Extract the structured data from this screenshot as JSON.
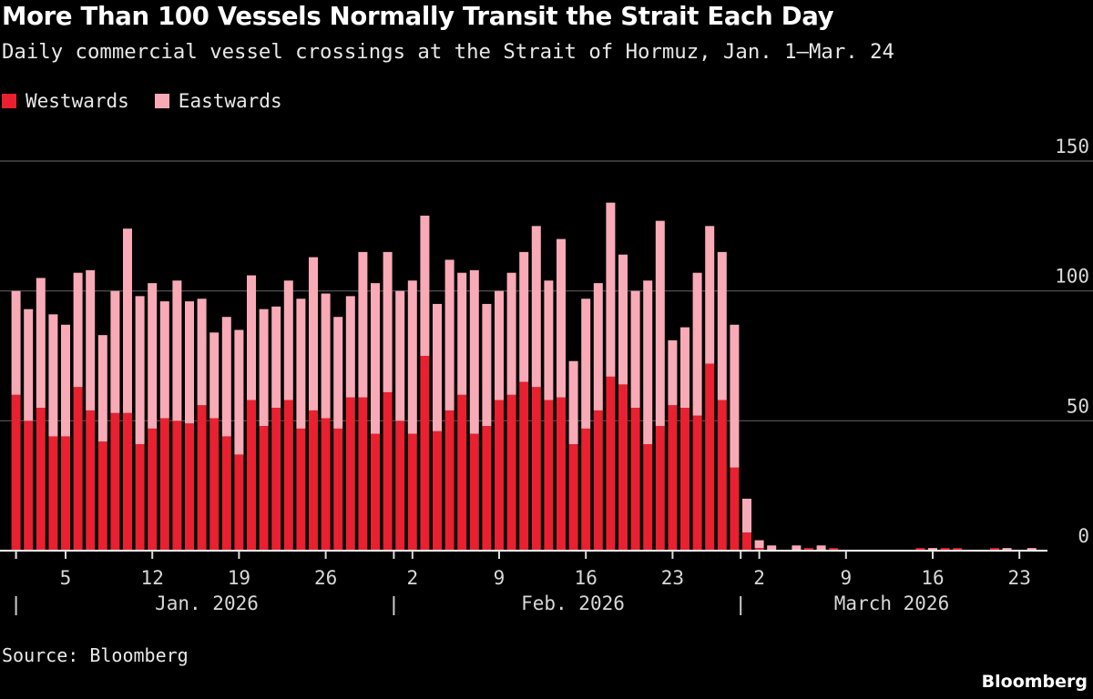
{
  "title": "More Than 100 Vessels Normally Transit the Strait Each Day",
  "subtitle": "Daily commercial vessel crossings at the Strait of Hormuz, Jan. 1–Mar. 24",
  "source": "Source: Bloomberg",
  "brand": "Bloomberg",
  "chart_data": {
    "type": "bar",
    "stacked": true,
    "legend_position": "top-left",
    "grid": true,
    "ylim": [
      0,
      150
    ],
    "yticks": [
      "0",
      "50",
      "100",
      "150"
    ],
    "xticks": [
      {
        "date": "2026-01-05",
        "label": "5"
      },
      {
        "date": "2026-01-12",
        "label": "12"
      },
      {
        "date": "2026-01-19",
        "label": "19"
      },
      {
        "date": "2026-01-26",
        "label": "26"
      },
      {
        "date": "2026-02-02",
        "label": "2"
      },
      {
        "date": "2026-02-09",
        "label": "9"
      },
      {
        "date": "2026-02-16",
        "label": "16"
      },
      {
        "date": "2026-02-23",
        "label": "23"
      },
      {
        "date": "2026-03-02",
        "label": "2"
      },
      {
        "date": "2026-03-09",
        "label": "9"
      },
      {
        "date": "2026-03-16",
        "label": "16"
      },
      {
        "date": "2026-03-23",
        "label": "23"
      }
    ],
    "month_labels": [
      "Jan. 2026",
      "Feb. 2026",
      "March 2026"
    ],
    "dates": [
      "2026-01-01",
      "2026-01-02",
      "2026-01-03",
      "2026-01-04",
      "2026-01-05",
      "2026-01-06",
      "2026-01-07",
      "2026-01-08",
      "2026-01-09",
      "2026-01-10",
      "2026-01-11",
      "2026-01-12",
      "2026-01-13",
      "2026-01-14",
      "2026-01-15",
      "2026-01-16",
      "2026-01-17",
      "2026-01-18",
      "2026-01-19",
      "2026-01-20",
      "2026-01-21",
      "2026-01-22",
      "2026-01-23",
      "2026-01-24",
      "2026-01-25",
      "2026-01-26",
      "2026-01-27",
      "2026-01-28",
      "2026-01-29",
      "2026-01-30",
      "2026-01-31",
      "2026-02-01",
      "2026-02-02",
      "2026-02-03",
      "2026-02-04",
      "2026-02-05",
      "2026-02-06",
      "2026-02-07",
      "2026-02-08",
      "2026-02-09",
      "2026-02-10",
      "2026-02-11",
      "2026-02-12",
      "2026-02-13",
      "2026-02-14",
      "2026-02-15",
      "2026-02-16",
      "2026-02-17",
      "2026-02-18",
      "2026-02-19",
      "2026-02-20",
      "2026-02-21",
      "2026-02-22",
      "2026-02-23",
      "2026-02-24",
      "2026-02-25",
      "2026-02-26",
      "2026-02-27",
      "2026-02-28",
      "2026-03-01",
      "2026-03-02",
      "2026-03-03",
      "2026-03-04",
      "2026-03-05",
      "2026-03-06",
      "2026-03-07",
      "2026-03-08",
      "2026-03-09",
      "2026-03-10",
      "2026-03-11",
      "2026-03-12",
      "2026-03-13",
      "2026-03-14",
      "2026-03-15",
      "2026-03-16",
      "2026-03-17",
      "2026-03-18",
      "2026-03-19",
      "2026-03-20",
      "2026-03-21",
      "2026-03-22",
      "2026-03-23",
      "2026-03-24"
    ],
    "series": [
      {
        "name": "Westwards",
        "color": "#e8202f",
        "values": [
          60,
          50,
          55,
          44,
          44,
          63,
          54,
          42,
          53,
          53,
          41,
          47,
          51,
          50,
          49,
          56,
          51,
          44,
          37,
          58,
          48,
          55,
          58,
          47,
          54,
          51,
          47,
          59,
          59,
          45,
          61,
          50,
          45,
          75,
          46,
          54,
          60,
          45,
          48,
          58,
          60,
          65,
          63,
          58,
          59,
          41,
          47,
          54,
          67,
          64,
          55,
          41,
          48,
          56,
          55,
          52,
          72,
          58,
          32,
          7,
          1,
          0,
          0,
          0,
          1,
          0,
          1,
          0,
          0,
          0,
          0,
          0,
          0,
          1,
          0,
          1,
          1,
          0,
          0,
          1,
          0,
          0,
          0
        ]
      },
      {
        "name": "Eastwards",
        "color": "#f8aab6",
        "values": [
          40,
          43,
          50,
          47,
          43,
          44,
          54,
          41,
          47,
          71,
          57,
          56,
          45,
          54,
          47,
          41,
          33,
          46,
          48,
          48,
          45,
          39,
          46,
          50,
          59,
          48,
          43,
          39,
          56,
          58,
          54,
          50,
          59,
          54,
          49,
          58,
          47,
          63,
          47,
          42,
          47,
          50,
          62,
          46,
          61,
          32,
          50,
          49,
          67,
          50,
          45,
          63,
          79,
          25,
          31,
          55,
          53,
          57,
          55,
          13,
          3,
          2,
          0,
          2,
          0,
          2,
          0,
          0,
          0,
          0,
          0,
          0,
          0,
          0,
          1,
          0,
          0,
          0,
          0,
          0,
          1,
          0,
          1
        ]
      }
    ]
  }
}
